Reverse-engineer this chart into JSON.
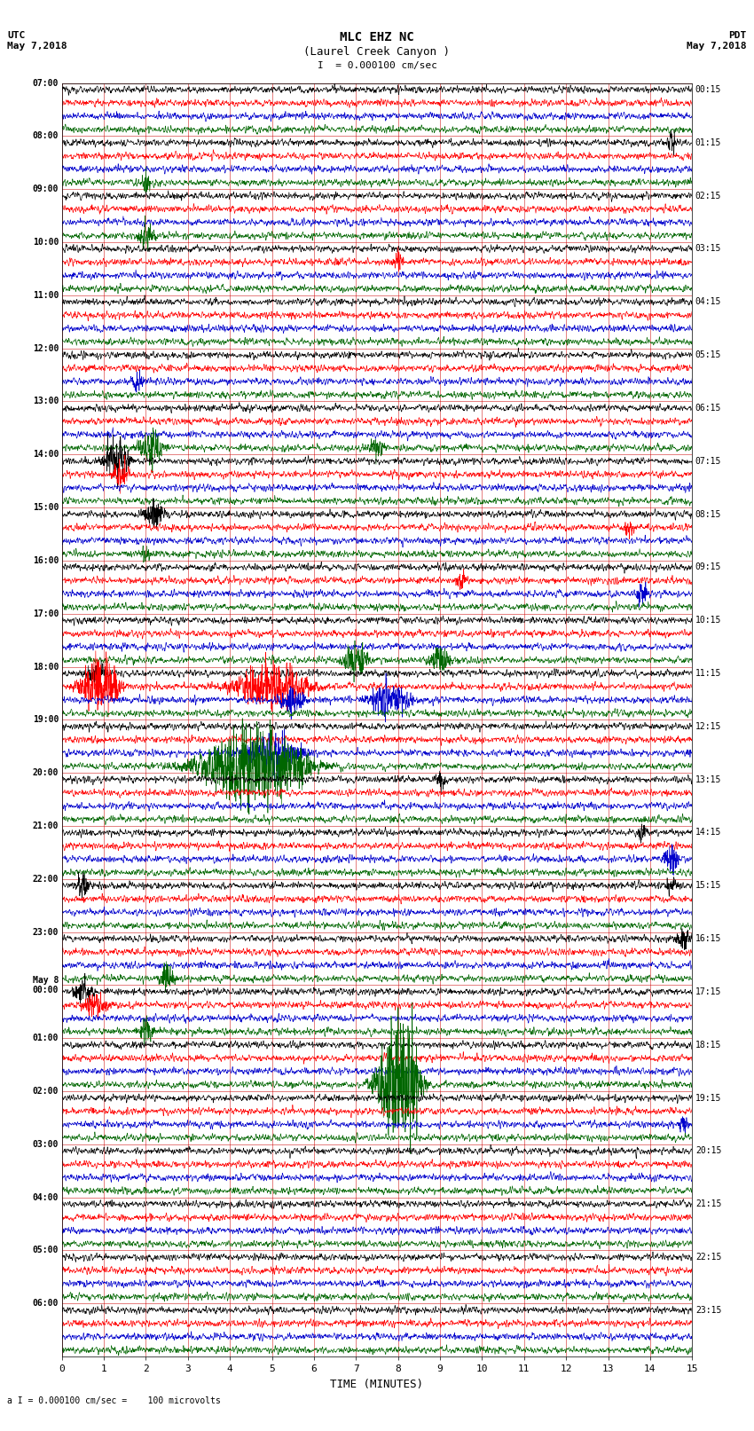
{
  "title_line1": "MLC EHZ NC",
  "title_line2": "(Laurel Creek Canyon )",
  "scale_text": "I  = 0.000100 cm/sec",
  "bottom_label": "a I = 0.000100 cm/sec =    100 microvolts",
  "xlabel": "TIME (MINUTES)",
  "bg_color": "#ffffff",
  "plot_bg_color": "#ffffff",
  "trace_colors": [
    "#000000",
    "#ff0000",
    "#0000cc",
    "#006600"
  ],
  "left_times": [
    "07:00",
    "08:00",
    "09:00",
    "10:00",
    "11:00",
    "12:00",
    "13:00",
    "14:00",
    "15:00",
    "16:00",
    "17:00",
    "18:00",
    "19:00",
    "20:00",
    "21:00",
    "22:00",
    "23:00",
    "May 8\n00:00",
    "01:00",
    "02:00",
    "03:00",
    "04:00",
    "05:00",
    "06:00"
  ],
  "right_times": [
    "00:15",
    "01:15",
    "02:15",
    "03:15",
    "04:15",
    "05:15",
    "06:15",
    "07:15",
    "08:15",
    "09:15",
    "10:15",
    "11:15",
    "12:15",
    "13:15",
    "14:15",
    "15:15",
    "16:15",
    "17:15",
    "18:15",
    "19:15",
    "20:15",
    "21:15",
    "22:15",
    "23:15"
  ],
  "num_hours": 24,
  "traces_per_hour": 4,
  "xmin": 0,
  "xmax": 15,
  "xticks": [
    0,
    1,
    2,
    3,
    4,
    5,
    6,
    7,
    8,
    9,
    10,
    11,
    12,
    13,
    14,
    15
  ],
  "noise_amplitude": 0.3,
  "events": [
    {
      "hour": 1,
      "trace": 3,
      "time": 2.0,
      "amp": 3.0,
      "duration": 0.15
    },
    {
      "hour": 1,
      "trace": 0,
      "time": 14.5,
      "amp": 2.5,
      "duration": 0.2
    },
    {
      "hour": 2,
      "trace": 3,
      "time": 2.0,
      "amp": 3.0,
      "duration": 0.3
    },
    {
      "hour": 3,
      "trace": 1,
      "time": 8.0,
      "amp": 2.0,
      "duration": 0.2
    },
    {
      "hour": 5,
      "trace": 2,
      "time": 1.8,
      "amp": 2.5,
      "duration": 0.2
    },
    {
      "hour": 6,
      "trace": 3,
      "time": 2.1,
      "amp": 4.0,
      "duration": 0.5
    },
    {
      "hour": 6,
      "trace": 3,
      "time": 7.5,
      "amp": 2.5,
      "duration": 0.3
    },
    {
      "hour": 7,
      "trace": 0,
      "time": 1.3,
      "amp": 5.0,
      "duration": 0.5
    },
    {
      "hour": 7,
      "trace": 1,
      "time": 1.4,
      "amp": 3.0,
      "duration": 0.3
    },
    {
      "hour": 8,
      "trace": 1,
      "time": 13.5,
      "amp": 2.0,
      "duration": 0.2
    },
    {
      "hour": 8,
      "trace": 3,
      "time": 2.0,
      "amp": 2.0,
      "duration": 0.2
    },
    {
      "hour": 8,
      "trace": 0,
      "time": 2.2,
      "amp": 3.5,
      "duration": 0.4
    },
    {
      "hour": 9,
      "trace": 2,
      "time": 13.8,
      "amp": 2.5,
      "duration": 0.3
    },
    {
      "hour": 9,
      "trace": 1,
      "time": 9.5,
      "amp": 2.0,
      "duration": 0.2
    },
    {
      "hour": 10,
      "trace": 3,
      "time": 9.0,
      "amp": 3.0,
      "duration": 0.4
    },
    {
      "hour": 10,
      "trace": 3,
      "time": 7.0,
      "amp": 3.5,
      "duration": 0.5
    },
    {
      "hour": 11,
      "trace": 0,
      "time": 0.8,
      "amp": 3.0,
      "duration": 0.4
    },
    {
      "hour": 11,
      "trace": 1,
      "time": 0.9,
      "amp": 6.0,
      "duration": 0.8
    },
    {
      "hour": 11,
      "trace": 1,
      "time": 5.0,
      "amp": 5.0,
      "duration": 1.5
    },
    {
      "hour": 11,
      "trace": 2,
      "time": 7.8,
      "amp": 4.0,
      "duration": 0.8
    },
    {
      "hour": 11,
      "trace": 2,
      "time": 5.5,
      "amp": 3.0,
      "duration": 0.5
    },
    {
      "hour": 12,
      "trace": 3,
      "time": 4.5,
      "amp": 8.0,
      "duration": 2.0
    },
    {
      "hour": 12,
      "trace": 3,
      "time": 5.0,
      "amp": 5.0,
      "duration": 1.5
    },
    {
      "hour": 12,
      "trace": 2,
      "time": 5.0,
      "amp": 4.0,
      "duration": 1.2
    },
    {
      "hour": 13,
      "trace": 0,
      "time": 9.0,
      "amp": 2.0,
      "duration": 0.2
    },
    {
      "hour": 14,
      "trace": 0,
      "time": 13.8,
      "amp": 2.0,
      "duration": 0.2
    },
    {
      "hour": 14,
      "trace": 2,
      "time": 14.5,
      "amp": 3.0,
      "duration": 0.3
    },
    {
      "hour": 15,
      "trace": 0,
      "time": 0.5,
      "amp": 2.5,
      "duration": 0.3
    },
    {
      "hour": 15,
      "trace": 0,
      "time": 14.5,
      "amp": 2.0,
      "duration": 0.2
    },
    {
      "hour": 16,
      "trace": 0,
      "time": 14.8,
      "amp": 2.5,
      "duration": 0.3
    },
    {
      "hour": 16,
      "trace": 3,
      "time": 2.5,
      "amp": 3.0,
      "duration": 0.3
    },
    {
      "hour": 17,
      "trace": 3,
      "time": 2.0,
      "amp": 2.5,
      "duration": 0.3
    },
    {
      "hour": 17,
      "trace": 0,
      "time": 0.5,
      "amp": 2.5,
      "duration": 0.4
    },
    {
      "hour": 17,
      "trace": 1,
      "time": 0.8,
      "amp": 2.5,
      "duration": 0.5
    },
    {
      "hour": 18,
      "trace": 3,
      "time": 8.0,
      "amp": 14.0,
      "duration": 0.8
    },
    {
      "hour": 18,
      "trace": 3,
      "time": 8.2,
      "amp": 8.0,
      "duration": 0.5
    },
    {
      "hour": 19,
      "trace": 2,
      "time": 14.8,
      "amp": 2.0,
      "duration": 0.2
    }
  ]
}
